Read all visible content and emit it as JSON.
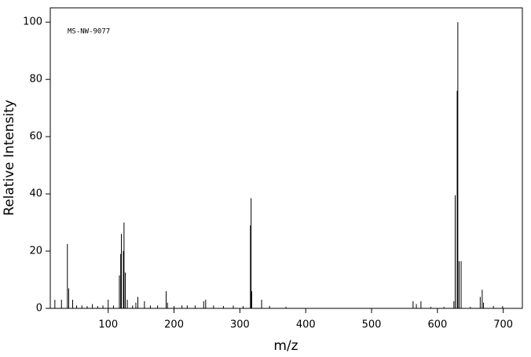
{
  "chart_data": {
    "type": "spectrum",
    "annotation": "MS-NW-9077",
    "xlabel": "m/z",
    "ylabel": "Relative Intensity",
    "color": "#000000",
    "xlim": [
      12,
      729
    ],
    "ylim": [
      0,
      105
    ],
    "xticks": [
      100,
      200,
      300,
      400,
      500,
      600,
      700
    ],
    "yticks": [
      0,
      20,
      40,
      60,
      80,
      100
    ],
    "x": [
      19,
      29,
      38,
      40,
      46,
      52,
      60,
      68,
      76,
      84,
      92,
      100,
      108,
      117,
      119,
      120,
      123,
      124,
      126,
      129,
      137,
      142,
      145,
      155,
      164,
      175,
      188,
      190,
      200,
      212,
      220,
      232,
      245,
      248,
      260,
      275,
      290,
      305,
      316,
      317,
      318,
      333,
      345,
      370,
      563,
      568,
      575,
      590,
      610,
      625,
      627,
      630,
      631,
      633,
      636,
      650,
      665,
      668,
      670,
      685,
      699
    ],
    "values": [
      3,
      3,
      22.5,
      7,
      3,
      1,
      1,
      0.8,
      1.5,
      0.8,
      1,
      3,
      1,
      11.5,
      19,
      26,
      20,
      30,
      12.5,
      3,
      1,
      2,
      4,
      2.5,
      1,
      1,
      6,
      2,
      0.8,
      1,
      1,
      1,
      2.5,
      3,
      1,
      0.8,
      1,
      0.8,
      29,
      38.5,
      6,
      3,
      0.8,
      0.5,
      2.5,
      1.5,
      2.5,
      0.5,
      0.5,
      2.5,
      39.5,
      76,
      100,
      16.5,
      16.5,
      0.5,
      4,
      6.5,
      2,
      0.8,
      0.8
    ]
  }
}
